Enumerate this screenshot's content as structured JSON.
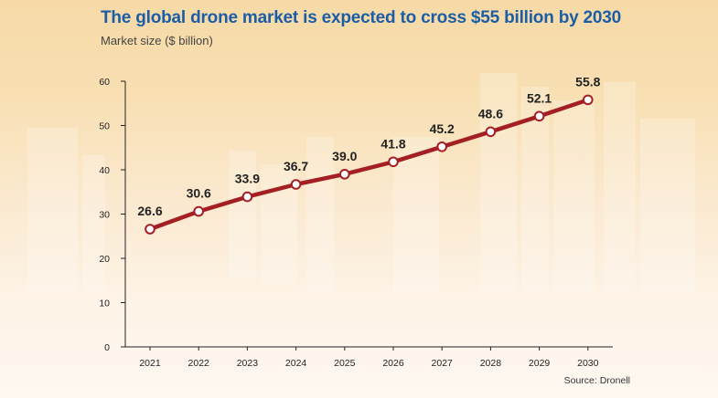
{
  "header": {
    "title": "The global drone market is expected to cross $55 billion by 2030",
    "subtitle": "Market size ($ billion)"
  },
  "footer": {
    "source": "Source: Dronell"
  },
  "colors": {
    "line": "#a41f23",
    "title": "#1b5ea6",
    "axis": "#222222"
  },
  "chart_data": {
    "type": "line",
    "title": "The global drone market is expected to cross $55 billion by 2030",
    "ylabel": "Market size ($ billion)",
    "xlabel": "",
    "x": [
      "2021",
      "2022",
      "2023",
      "2024",
      "2025",
      "2026",
      "2027",
      "2028",
      "2029",
      "2030"
    ],
    "series": [
      {
        "values": [
          26.6,
          30.6,
          33.9,
          36.7,
          39.0,
          41.8,
          45.2,
          48.6,
          52.1,
          55.8
        ],
        "labels": [
          "26.6",
          "30.6",
          "33.9",
          "36.7",
          "39.0",
          "41.8",
          "45.2",
          "48.6",
          "52.1",
          "55.8"
        ]
      }
    ],
    "ylim": [
      0,
      60
    ],
    "yticks": [
      0,
      10,
      20,
      30,
      40,
      50,
      60
    ],
    "grid": false,
    "legend": "none"
  }
}
